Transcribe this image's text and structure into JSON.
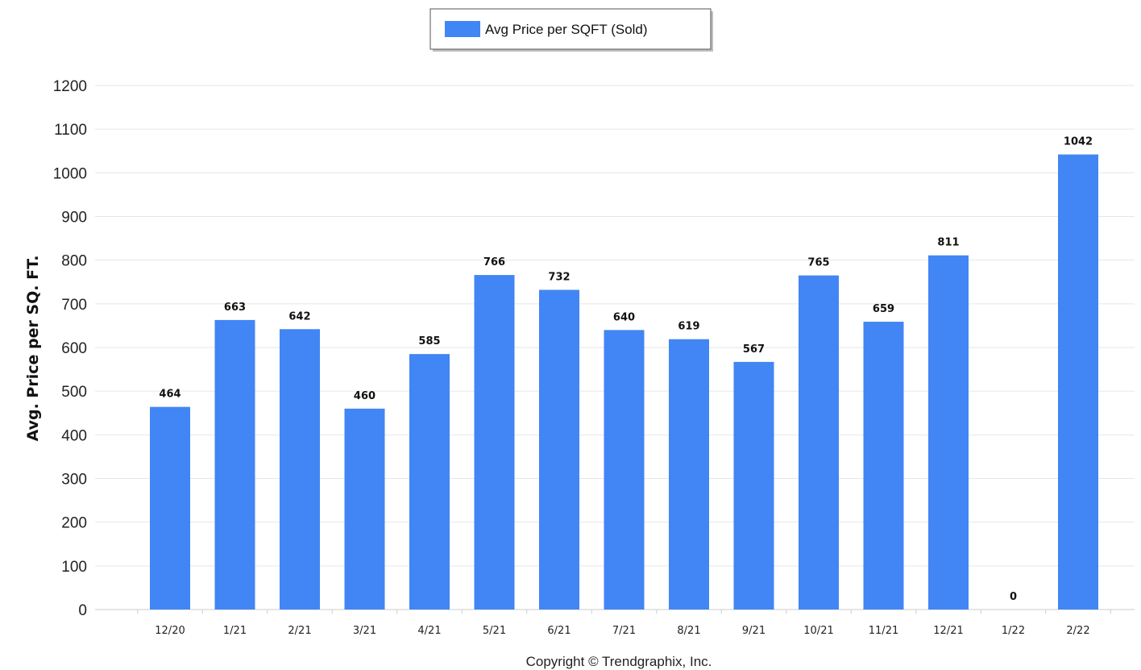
{
  "chart_data": {
    "type": "bar",
    "categories": [
      "12/20",
      "1/21",
      "2/21",
      "3/21",
      "4/21",
      "5/21",
      "6/21",
      "7/21",
      "8/21",
      "9/21",
      "10/21",
      "11/21",
      "12/21",
      "1/22",
      "2/22"
    ],
    "series": [
      {
        "name": "Avg Price per SQFT (Sold)",
        "values": [
          464,
          663,
          642,
          460,
          585,
          766,
          732,
          640,
          619,
          567,
          765,
          659,
          811,
          0,
          1042
        ],
        "color": "#4285f4"
      }
    ],
    "data_labels": [
      "464",
      "663",
      "642",
      "460",
      "585",
      "766",
      "732",
      "640",
      "619",
      "567",
      "765",
      "659",
      "811",
      "0",
      "1042"
    ],
    "ylabel": "Avg. Price per SQ. FT.",
    "xlabel": "",
    "ylim": [
      0,
      1200
    ],
    "yticks": [
      0,
      100,
      200,
      300,
      400,
      500,
      600,
      700,
      800,
      900,
      1000,
      1100,
      1200
    ],
    "grid": true,
    "legend_position": "top-center"
  },
  "legend": {
    "label": "Avg Price per SQFT (Sold)"
  },
  "footer": {
    "copyright": "Copyright © Trendgraphix, Inc."
  }
}
